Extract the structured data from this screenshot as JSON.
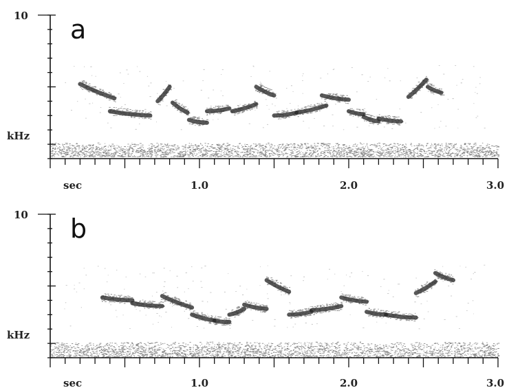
{
  "chart_data": [
    {
      "type": "spectrogram",
      "panel_label": "a",
      "ylabel": "kHz",
      "xlabel": "sec",
      "ymax_label": "10",
      "ylim": [
        0,
        10
      ],
      "xlim": [
        0,
        3.0
      ],
      "x_tick_labels": [
        "1.0",
        "2.0",
        "3.0"
      ],
      "noise_band_khz": [
        0.1,
        1.1
      ],
      "syllables": [
        {
          "t": [
            0.2,
            0.43
          ],
          "f": [
            5.2,
            4.2
          ]
        },
        {
          "t": [
            0.4,
            0.67
          ],
          "f": [
            3.3,
            3.0
          ]
        },
        {
          "t": [
            0.72,
            0.8
          ],
          "f": [
            4.0,
            5.0
          ]
        },
        {
          "t": [
            0.82,
            0.92
          ],
          "f": [
            3.9,
            3.2
          ]
        },
        {
          "t": [
            0.93,
            1.05
          ],
          "f": [
            2.7,
            2.5
          ]
        },
        {
          "t": [
            1.05,
            1.2
          ],
          "f": [
            3.3,
            3.5
          ]
        },
        {
          "t": [
            1.22,
            1.38
          ],
          "f": [
            3.3,
            3.8
          ]
        },
        {
          "t": [
            1.38,
            1.5
          ],
          "f": [
            5.0,
            4.4
          ]
        },
        {
          "t": [
            1.5,
            1.65
          ],
          "f": [
            3.0,
            3.2
          ]
        },
        {
          "t": [
            1.65,
            1.85
          ],
          "f": [
            3.2,
            3.7
          ]
        },
        {
          "t": [
            1.82,
            2.0
          ],
          "f": [
            4.4,
            4.1
          ]
        },
        {
          "t": [
            2.0,
            2.1
          ],
          "f": [
            3.3,
            3.1
          ]
        },
        {
          "t": [
            2.1,
            2.2
          ],
          "f": [
            2.9,
            2.6
          ]
        },
        {
          "t": [
            2.2,
            2.35
          ],
          "f": [
            2.8,
            2.6
          ]
        },
        {
          "t": [
            2.4,
            2.52
          ],
          "f": [
            4.3,
            5.5
          ]
        },
        {
          "t": [
            2.53,
            2.62
          ],
          "f": [
            5.0,
            4.6
          ]
        }
      ]
    },
    {
      "type": "spectrogram",
      "panel_label": "b",
      "ylabel": "kHz",
      "xlabel": "sec",
      "ymax_label": "10",
      "ylim": [
        0,
        10
      ],
      "xlim": [
        0,
        3.0
      ],
      "x_tick_labels": [
        "1.0",
        "2.0",
        "3.0"
      ],
      "noise_band_khz": [
        0.0,
        1.1
      ],
      "syllables": [
        {
          "t": [
            0.35,
            0.55
          ],
          "f": [
            4.2,
            4.0
          ]
        },
        {
          "t": [
            0.55,
            0.75
          ],
          "f": [
            3.8,
            3.6
          ]
        },
        {
          "t": [
            0.75,
            0.95
          ],
          "f": [
            4.3,
            3.5
          ]
        },
        {
          "t": [
            0.95,
            1.1
          ],
          "f": [
            3.0,
            2.6
          ]
        },
        {
          "t": [
            1.1,
            1.2
          ],
          "f": [
            2.6,
            2.5
          ]
        },
        {
          "t": [
            1.2,
            1.3
          ],
          "f": [
            3.0,
            3.4
          ]
        },
        {
          "t": [
            1.3,
            1.45
          ],
          "f": [
            3.7,
            3.4
          ]
        },
        {
          "t": [
            1.45,
            1.6
          ],
          "f": [
            5.4,
            4.6
          ]
        },
        {
          "t": [
            1.6,
            1.75
          ],
          "f": [
            3.0,
            3.2
          ]
        },
        {
          "t": [
            1.75,
            1.95
          ],
          "f": [
            3.3,
            3.6
          ]
        },
        {
          "t": [
            1.95,
            2.12
          ],
          "f": [
            4.2,
            3.9
          ]
        },
        {
          "t": [
            2.12,
            2.25
          ],
          "f": [
            3.2,
            3.0
          ]
        },
        {
          "t": [
            2.25,
            2.45
          ],
          "f": [
            3.0,
            2.8
          ]
        },
        {
          "t": [
            2.45,
            2.58
          ],
          "f": [
            4.5,
            5.3
          ]
        },
        {
          "t": [
            2.58,
            2.7
          ],
          "f": [
            5.9,
            5.4
          ]
        }
      ]
    }
  ]
}
